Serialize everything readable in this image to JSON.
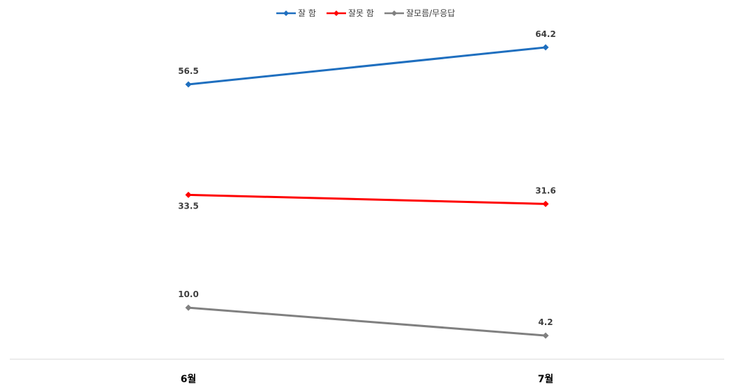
{
  "chart_data": {
    "type": "line",
    "categories": [
      "6월",
      "7월"
    ],
    "series": [
      {
        "name": "잘 함",
        "values": [
          56.5,
          64.2
        ],
        "labels": [
          "56.5",
          "64.2"
        ],
        "color": "#1f6fbf",
        "label_position": [
          "above",
          "above"
        ]
      },
      {
        "name": "잘못 함",
        "values": [
          33.5,
          31.6
        ],
        "labels": [
          "33.5",
          "31.6"
        ],
        "color": "#ff0000",
        "label_position": [
          "below",
          "above"
        ]
      },
      {
        "name": "잘모름/무응답",
        "values": [
          10.0,
          4.2
        ],
        "labels": [
          "10.0",
          "4.2"
        ],
        "color": "#808080",
        "label_position": [
          "above",
          "above"
        ]
      }
    ],
    "marker": "diamond",
    "ylim": [
      0,
      70
    ],
    "grid": false,
    "legend": "top-center",
    "axis_color": "#d9d9d9",
    "label_color": "#404040"
  }
}
